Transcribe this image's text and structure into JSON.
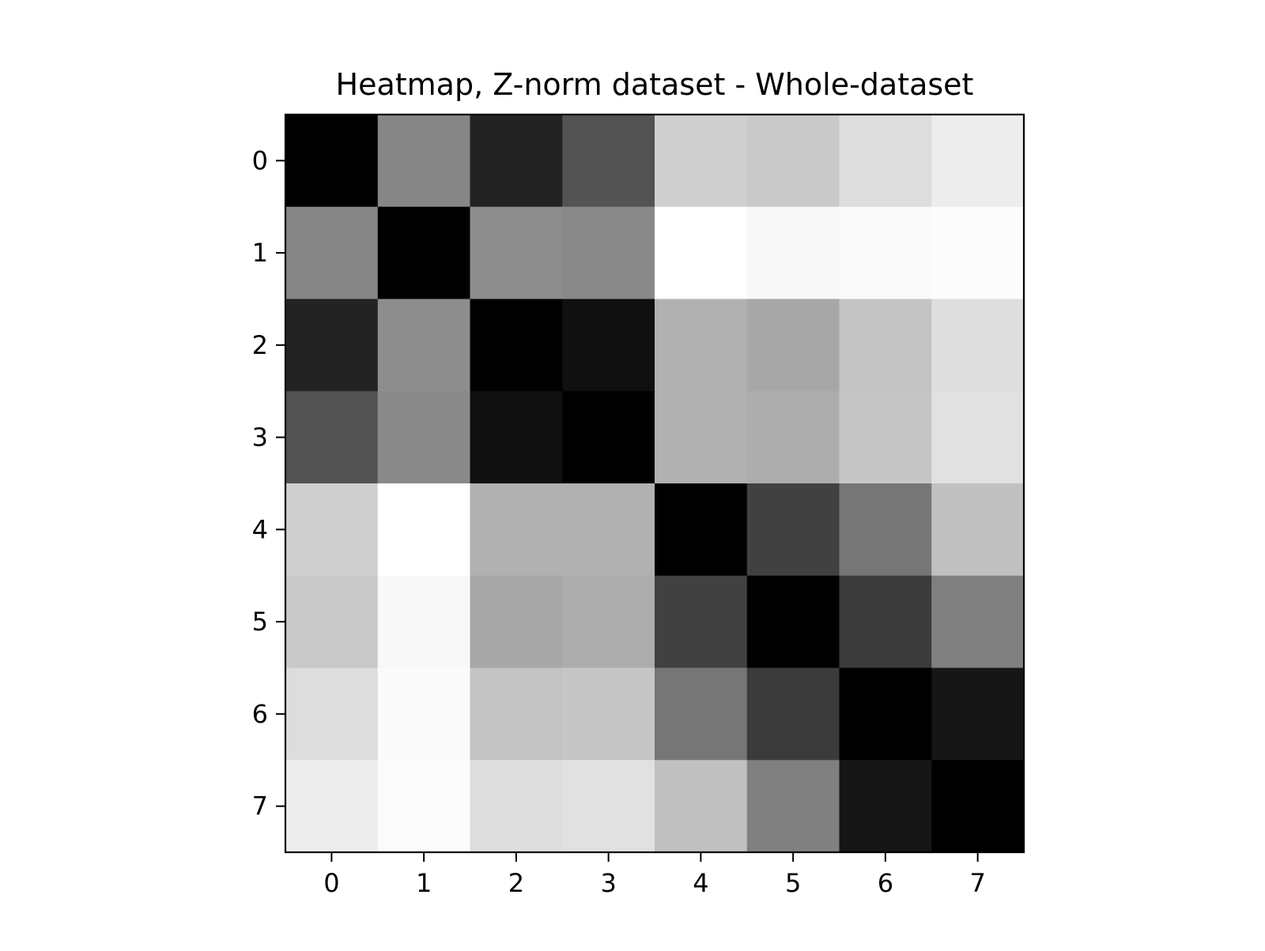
{
  "chart_data": {
    "type": "heatmap",
    "title": "Heatmap, Z-norm dataset - Whole-dataset",
    "xlabel": "",
    "ylabel": "",
    "colormap": "gray",
    "x_tick_labels": [
      "0",
      "1",
      "2",
      "3",
      "4",
      "5",
      "6",
      "7"
    ],
    "y_tick_labels": [
      "0",
      "1",
      "2",
      "3",
      "4",
      "5",
      "6",
      "7"
    ],
    "grid": false,
    "legend": "none",
    "value_range": [
      0,
      255
    ],
    "values": [
      [
        0,
        134,
        35,
        83,
        207,
        201,
        221,
        237
      ],
      [
        134,
        0,
        141,
        137,
        255,
        248,
        250,
        252
      ],
      [
        35,
        141,
        0,
        16,
        177,
        167,
        195,
        222
      ],
      [
        83,
        137,
        16,
        0,
        177,
        173,
        198,
        225
      ],
      [
        207,
        255,
        177,
        177,
        0,
        65,
        118,
        192
      ],
      [
        201,
        248,
        167,
        173,
        65,
        0,
        59,
        128
      ],
      [
        221,
        250,
        195,
        198,
        118,
        59,
        0,
        22
      ],
      [
        237,
        252,
        222,
        225,
        192,
        128,
        22,
        0
      ]
    ]
  }
}
